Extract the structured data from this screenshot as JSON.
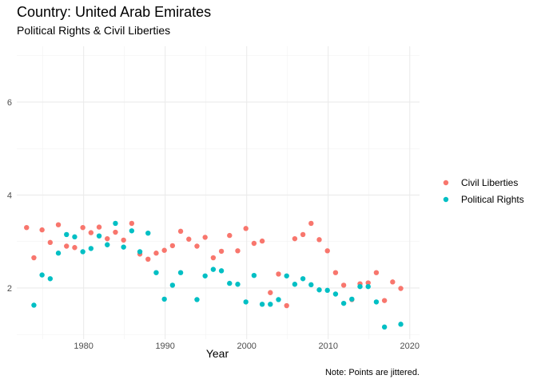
{
  "chart_data": {
    "type": "scatter",
    "title": "Country: United Arab Emirates",
    "subtitle": "Political Rights & Civil Liberties",
    "xlabel": "Year",
    "ylabel": "",
    "caption": "Note: Points are jittered.",
    "xlim": [
      1971.8,
      2021.2
    ],
    "ylim": [
      0.9,
      7.2
    ],
    "x_ticks": [
      1980,
      1990,
      2000,
      2010,
      2020
    ],
    "y_ticks": [
      2,
      4,
      6
    ],
    "grid": true,
    "legend_position": "right",
    "series": [
      {
        "name": "Civil Liberties",
        "color": "#F8766D",
        "points": [
          [
            1973.0,
            3.3
          ],
          [
            1973.9,
            2.65
          ],
          [
            1974.9,
            3.25
          ],
          [
            1975.9,
            2.98
          ],
          [
            1976.9,
            3.36
          ],
          [
            1977.9,
            2.9
          ],
          [
            1978.9,
            2.87
          ],
          [
            1979.9,
            3.3
          ],
          [
            1980.9,
            3.19
          ],
          [
            1981.9,
            3.31
          ],
          [
            1982.9,
            3.06
          ],
          [
            1983.9,
            3.2
          ],
          [
            1984.9,
            3.03
          ],
          [
            1985.9,
            3.39
          ],
          [
            1986.9,
            2.73
          ],
          [
            1987.9,
            2.62
          ],
          [
            1988.9,
            2.75
          ],
          [
            1989.9,
            2.81
          ],
          [
            1990.9,
            2.91
          ],
          [
            1991.9,
            3.22
          ],
          [
            1992.9,
            3.05
          ],
          [
            1993.9,
            2.9
          ],
          [
            1994.9,
            3.09
          ],
          [
            1995.9,
            2.65
          ],
          [
            1996.9,
            2.79
          ],
          [
            1997.9,
            3.13
          ],
          [
            1998.9,
            2.8
          ],
          [
            1999.9,
            3.28
          ],
          [
            2000.9,
            2.96
          ],
          [
            2001.9,
            3.01
          ],
          [
            2002.9,
            1.9
          ],
          [
            2003.9,
            2.3
          ],
          [
            2004.9,
            1.62
          ],
          [
            2005.9,
            3.06
          ],
          [
            2006.9,
            3.15
          ],
          [
            2007.9,
            3.39
          ],
          [
            2008.9,
            3.04
          ],
          [
            2009.9,
            2.8
          ],
          [
            2010.9,
            2.33
          ],
          [
            2011.9,
            2.06
          ],
          [
            2012.9,
            1.75
          ],
          [
            2013.9,
            2.09
          ],
          [
            2014.9,
            2.11
          ],
          [
            2015.9,
            2.33
          ],
          [
            2016.9,
            1.73
          ],
          [
            2017.9,
            2.13
          ],
          [
            2018.9,
            1.99
          ]
        ]
      },
      {
        "name": "Political Rights",
        "color": "#00BFC4",
        "points": [
          [
            1973.9,
            1.63
          ],
          [
            1974.9,
            2.28
          ],
          [
            1975.9,
            2.2
          ],
          [
            1976.9,
            2.75
          ],
          [
            1977.9,
            3.15
          ],
          [
            1978.9,
            3.1
          ],
          [
            1979.9,
            2.78
          ],
          [
            1980.9,
            2.85
          ],
          [
            1981.9,
            3.12
          ],
          [
            1982.9,
            2.93
          ],
          [
            1983.9,
            3.39
          ],
          [
            1984.9,
            2.88
          ],
          [
            1985.9,
            3.23
          ],
          [
            1986.9,
            2.78
          ],
          [
            1987.9,
            3.18
          ],
          [
            1988.9,
            2.33
          ],
          [
            1989.9,
            1.76
          ],
          [
            1990.9,
            2.06
          ],
          [
            1991.9,
            2.33
          ],
          [
            1993.9,
            1.75
          ],
          [
            1994.9,
            2.26
          ],
          [
            1995.9,
            2.4
          ],
          [
            1996.9,
            2.37
          ],
          [
            1997.9,
            2.1
          ],
          [
            1998.9,
            2.08
          ],
          [
            1999.9,
            1.7
          ],
          [
            2000.9,
            2.27
          ],
          [
            2001.9,
            1.65
          ],
          [
            2002.9,
            1.65
          ],
          [
            2003.9,
            1.75
          ],
          [
            2004.9,
            2.26
          ],
          [
            2005.9,
            2.08
          ],
          [
            2006.9,
            2.2
          ],
          [
            2007.9,
            2.07
          ],
          [
            2008.9,
            1.96
          ],
          [
            2009.9,
            1.95
          ],
          [
            2010.9,
            1.87
          ],
          [
            2011.9,
            1.67
          ],
          [
            2012.9,
            1.76
          ],
          [
            2013.9,
            2.03
          ],
          [
            2014.9,
            2.03
          ],
          [
            2015.9,
            1.7
          ],
          [
            2016.9,
            1.16
          ],
          [
            2018.9,
            1.22
          ]
        ]
      }
    ]
  }
}
